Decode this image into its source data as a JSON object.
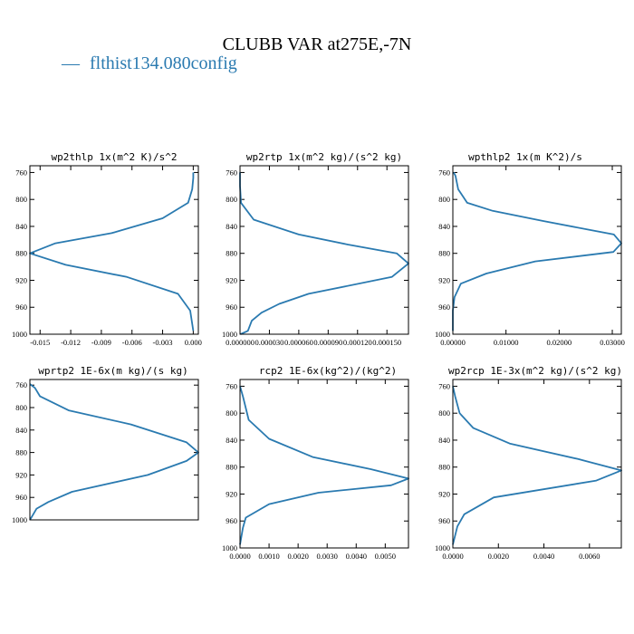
{
  "figure": {
    "title": "CLUBB VAR at275E,-7N",
    "legend": {
      "line_glyph": "—",
      "label": "flthist134.080config",
      "color": "#2a7ab0"
    }
  },
  "chart_data": [
    {
      "type": "line",
      "title": "wp2thlp  1x(m^2 K)/s^2",
      "y_axis": {
        "range": [
          1000,
          750
        ],
        "ticks": [
          "760",
          "800",
          "840",
          "880",
          "920",
          "960",
          "1000"
        ]
      },
      "x_axis": {
        "range": [
          -0.016,
          0.0005
        ],
        "ticks": [
          {
            "v": -0.015,
            "label": "-0.015"
          },
          {
            "v": -0.012,
            "label": "-0.012"
          },
          {
            "v": -0.009,
            "label": "-0.009"
          },
          {
            "v": -0.006,
            "label": "-0.006"
          },
          {
            "v": -0.003,
            "label": "-0.003"
          },
          {
            "v": 0.0,
            "label": "0.000"
          }
        ]
      },
      "series": [
        {
          "x": [
            0,
            0,
            -0.0001,
            -0.0005,
            -0.003,
            -0.008,
            -0.0135,
            -0.016,
            -0.0125,
            -0.0065,
            -0.0015,
            -0.0003,
            0
          ],
          "y": [
            760,
            768,
            785,
            805,
            828,
            850,
            865,
            880,
            897,
            915,
            940,
            965,
            995
          ]
        }
      ]
    },
    {
      "type": "line",
      "title": "wp2rtp  1x(m^2 kg)/(s^2 kg)",
      "y_axis": {
        "range": [
          1000,
          750
        ],
        "ticks": [
          "760",
          "800",
          "840",
          "880",
          "920",
          "960",
          "1000"
        ]
      },
      "x_axis": {
        "range": [
          0,
          0.000172
        ],
        "ticks": [
          {
            "v": 0.0,
            "label": "0.000000"
          },
          {
            "v": 3e-05,
            "label": "0.000030"
          },
          {
            "v": 6e-05,
            "label": "0.000060"
          },
          {
            "v": 9e-05,
            "label": "0.000090"
          },
          {
            "v": 0.00012,
            "label": "0.000120"
          },
          {
            "v": 0.00015,
            "label": "0.000150"
          }
        ]
      },
      "series": [
        {
          "x": [
            0,
            0,
            1e-06,
            1.4e-05,
            6e-05,
            0.00011,
            0.00016,
            0.000172,
            0.000155,
            7e-05,
            4e-05,
            2.2e-05,
            1.2e-05,
            8e-06,
            5e-07
          ],
          "y": [
            760,
            780,
            805,
            830,
            852,
            867,
            880,
            895,
            915,
            940,
            955,
            968,
            980,
            995,
            1000
          ]
        }
      ]
    },
    {
      "type": "line",
      "title": "wpthlp2  1x(m K^2)/s",
      "y_axis": {
        "range": [
          1000,
          750
        ],
        "ticks": [
          "760",
          "800",
          "840",
          "880",
          "920",
          "960",
          "1000"
        ]
      },
      "x_axis": {
        "range": [
          0,
          0.0317
        ],
        "ticks": [
          {
            "v": 0.0,
            "label": "0.00000"
          },
          {
            "v": 0.01,
            "label": "0.01000"
          },
          {
            "v": 0.02,
            "label": "0.02000"
          },
          {
            "v": 0.03,
            "label": "0.03000"
          }
        ]
      },
      "series": [
        {
          "x": [
            0.00015,
            0.0005,
            0.001,
            0.0027,
            0.0075,
            0.017,
            0.0303,
            0.0317,
            0.0302,
            0.0155,
            0.0063,
            0.0015,
            0.0003,
            0,
            0
          ],
          "y": [
            760,
            765,
            785,
            805,
            817,
            832,
            852,
            865,
            878,
            892,
            910,
            925,
            945,
            965,
            995
          ]
        }
      ]
    },
    {
      "type": "line",
      "title": "wprtp2  1E-6x(m kg)/(s kg)",
      "y_axis": {
        "range": [
          1000,
          750
        ],
        "ticks": [
          "760",
          "800",
          "840",
          "880",
          "920",
          "960",
          "1000"
        ]
      },
      "x_axis": {
        "range": [
          0,
          1
        ],
        "ticks": []
      },
      "series": [
        {
          "x": [
            0,
            0.03,
            0.06,
            0.23,
            0.6,
            0.93,
            1.0,
            0.93,
            0.7,
            0.25,
            0.11,
            0.04,
            0.01,
            0.0
          ],
          "y": [
            758,
            765,
            780,
            805,
            830,
            862,
            880,
            895,
            920,
            950,
            968,
            980,
            995,
            1000
          ]
        }
      ]
    },
    {
      "type": "line",
      "title": "rcp2  1E-6x(kg^2)/(kg^2)",
      "y_axis": {
        "range": [
          1000,
          750
        ],
        "ticks": [
          "760",
          "800",
          "840",
          "880",
          "920",
          "960",
          "1000"
        ]
      },
      "x_axis": {
        "range": [
          0,
          0.0058
        ],
        "ticks": [
          {
            "v": 0.0,
            "label": "0.0000"
          },
          {
            "v": 0.001,
            "label": "0.0010"
          },
          {
            "v": 0.002,
            "label": "0.0020"
          },
          {
            "v": 0.003,
            "label": "0.0030"
          },
          {
            "v": 0.004,
            "label": "0.0040"
          },
          {
            "v": 0.005,
            "label": "0.0050"
          }
        ]
      },
      "series": [
        {
          "x": [
            0,
            0.0001,
            0.0003,
            0.001,
            0.0025,
            0.0045,
            0.0058,
            0.0052,
            0.0027,
            0.001,
            0.0002,
            0.0001,
            0
          ],
          "y": [
            760,
            775,
            810,
            838,
            865,
            883,
            897,
            907,
            918,
            935,
            955,
            970,
            995
          ]
        }
      ]
    },
    {
      "type": "line",
      "title": "wp2rcp  1E-3x(m^2 kg)/(s^2 kg)",
      "y_axis": {
        "range": [
          1000,
          750
        ],
        "ticks": [
          "760",
          "800",
          "840",
          "880",
          "920",
          "960",
          "1000"
        ]
      },
      "x_axis": {
        "range": [
          0,
          0.0074
        ],
        "ticks": [
          {
            "v": 0.0,
            "label": "0.0000"
          },
          {
            "v": 0.002,
            "label": "0.0020"
          },
          {
            "v": 0.004,
            "label": "0.0040"
          },
          {
            "v": 0.006,
            "label": "0.0060"
          }
        ]
      },
      "series": [
        {
          "x": [
            0,
            0.0001,
            0.0003,
            0.0009,
            0.0025,
            0.0055,
            0.0074,
            0.0063,
            0.0018,
            0.0005,
            0.0002,
            0
          ],
          "y": [
            760,
            775,
            800,
            822,
            845,
            868,
            885,
            900,
            925,
            950,
            968,
            995
          ]
        }
      ]
    }
  ]
}
